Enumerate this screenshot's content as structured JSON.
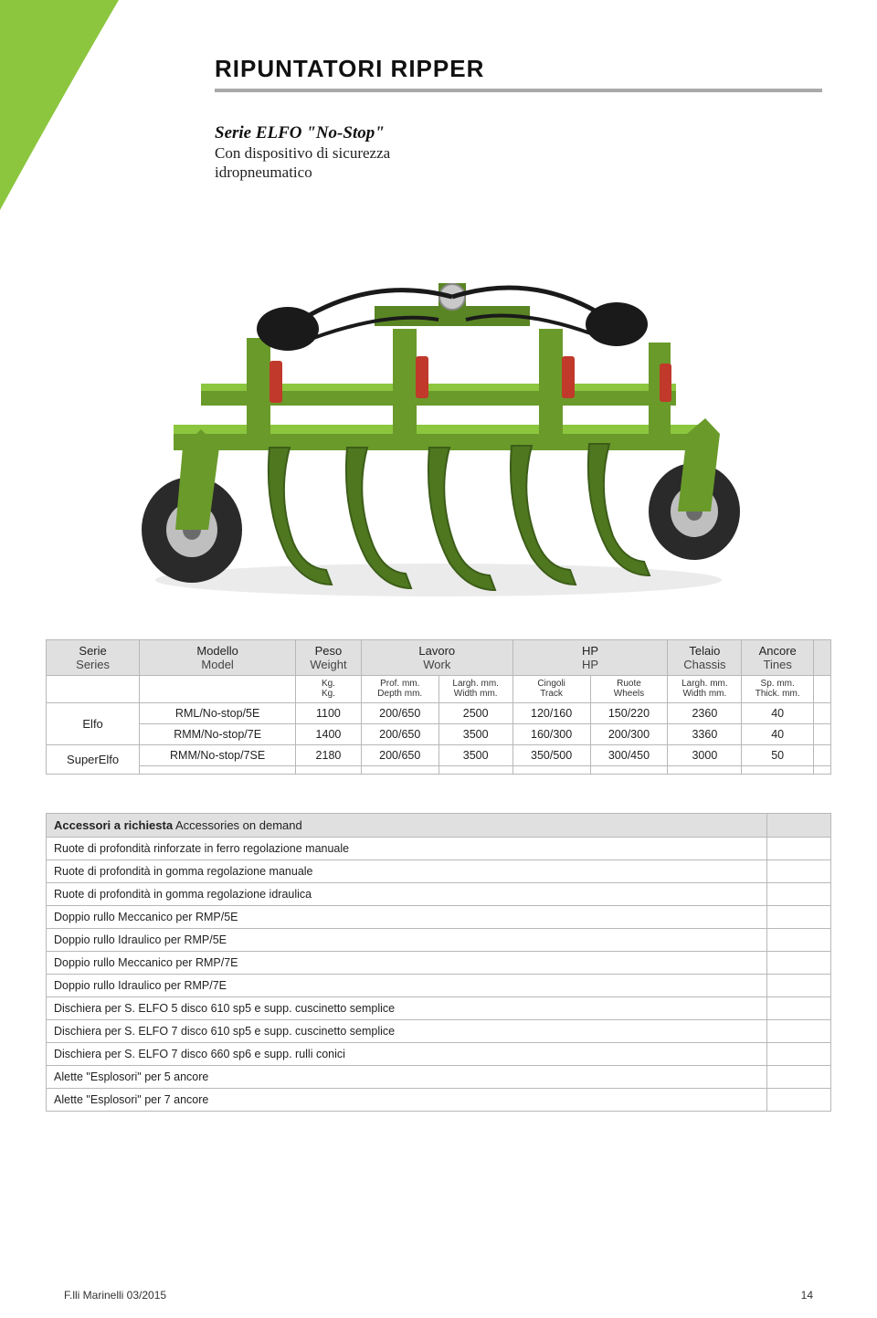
{
  "accent_color": "#8cc63f",
  "title": "RIPUNTATORI  RIPPER",
  "subtitle": {
    "heading": "Serie ELFO \"No-Stop\"",
    "line1": "Con dispositivo di sicurezza",
    "line2": "idropneumatico"
  },
  "spec_table": {
    "header_row1": [
      {
        "top": "Serie",
        "bot": "Series"
      },
      {
        "top": "Modello",
        "bot": "Model"
      },
      {
        "top": "Peso",
        "bot": "Weight"
      },
      {
        "top": "Lavoro",
        "bot": "Work",
        "colspan": 2
      },
      {
        "top": "HP",
        "bot": "HP",
        "colspan": 2
      },
      {
        "top": "Telaio",
        "bot": "Chassis"
      },
      {
        "top": "Ancore",
        "bot": "Tines"
      },
      {
        "top": "",
        "bot": ""
      }
    ],
    "header_row2": [
      "",
      "",
      "Kg.\nKg.",
      "Prof. mm.\nDepth mm.",
      "Largh. mm.\nWidth mm.",
      "Cingoli\nTrack",
      "Ruote\nWheels",
      "Largh. mm.\nWidth mm.",
      "Sp. mm.\nThick. mm.",
      ""
    ],
    "groups": [
      {
        "series": "Elfo",
        "rows": [
          {
            "model": "RML/No-stop/5E",
            "kg": "1100",
            "depth": "200/650",
            "width": "2500",
            "track": "120/160",
            "wheels": "150/220",
            "chassis": "2360",
            "tines": "40",
            "extra": ""
          },
          {
            "model": "RMM/No-stop/7E",
            "kg": "1400",
            "depth": "200/650",
            "width": "3500",
            "track": "160/300",
            "wheels": "200/300",
            "chassis": "3360",
            "tines": "40",
            "extra": ""
          }
        ]
      },
      {
        "series": "SuperElfo",
        "rows": [
          {
            "model": "RMM/No-stop/7SE",
            "kg": "2180",
            "depth": "200/650",
            "width": "3500",
            "track": "350/500",
            "wheels": "300/450",
            "chassis": "3000",
            "tines": "50",
            "extra": ""
          },
          {
            "model": "",
            "kg": "",
            "depth": "",
            "width": "",
            "track": "",
            "wheels": "",
            "chassis": "",
            "tines": "",
            "extra": ""
          }
        ]
      }
    ]
  },
  "accessories": {
    "header_bold": "Accessori a richiesta",
    "header_rest": " Accessories on demand",
    "items": [
      "Ruote di profondità rinforzate in ferro regolazione manuale",
      "Ruote di profondità in gomma regolazione manuale",
      "Ruote di profondità in gomma regolazione idraulica",
      "Doppio rullo Meccanico per RMP/5E",
      "Doppio rullo Idraulico per RMP/5E",
      "Doppio rullo Meccanico per RMP/7E",
      "Doppio rullo Idraulico per RMP/7E",
      "Dischiera per S. ELFO 5 disco 610 sp5 e supp. cuscinetto semplice",
      "Dischiera per S. ELFO 7 disco 610 sp5 e supp. cuscinetto semplice",
      "Dischiera per S. ELFO 7 disco 660 sp6 e supp. rulli conici",
      "Alette \"Esplosori\" per 5 ancore",
      "Alette \"Esplosori\" per 7 ancore"
    ]
  },
  "footer": {
    "left": "F.lli Marinelli 03/2015",
    "page": "14"
  },
  "product_svg_colors": {
    "frame": "#6a9a2a",
    "frame_light": "#8cc63f",
    "tine": "#4f7720",
    "tire": "#2a2a2a",
    "hub": "#bfbfbf",
    "hydraulic_black": "#1a1a1a",
    "hydraulic_red": "#c0392b"
  }
}
